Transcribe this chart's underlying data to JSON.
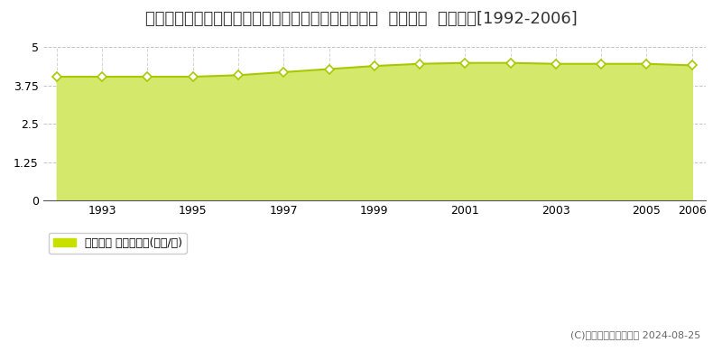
{
  "title": "岩手県柴波郡矢巾町大字赤林第１７地割字林崎８番６  地価公示  地価推移[1992-2006]",
  "years": [
    1992,
    1993,
    1994,
    1995,
    1996,
    1997,
    1998,
    1999,
    2000,
    2001,
    2002,
    2003,
    2004,
    2005,
    2006
  ],
  "values": [
    4.03,
    4.03,
    4.03,
    4.03,
    4.08,
    4.18,
    4.28,
    4.38,
    4.45,
    4.48,
    4.48,
    4.45,
    4.45,
    4.45,
    4.4
  ],
  "ylim": [
    0,
    5
  ],
  "yticks": [
    0,
    1.25,
    2.5,
    3.75,
    5
  ],
  "ytick_labels": [
    "0",
    "1.25",
    "2.5",
    "3.75",
    "5"
  ],
  "fill_color": "#d4e96b",
  "line_color": "#a8c800",
  "marker_facecolor": "#ffffff",
  "marker_edge_color": "#a8c800",
  "bg_color": "#ffffff",
  "grid_color": "#aaaaaa",
  "legend_label": "地価公示 平均坪単価(万円/坪)",
  "legend_color": "#c8e000",
  "copyright_text": "(C)土地価格ドットコム 2024-08-25",
  "title_fontsize": 13,
  "xtick_positions": [
    1993,
    1995,
    1997,
    1999,
    2001,
    2003,
    2005,
    2006
  ],
  "xtick_labels": [
    "1993",
    "1995",
    "1997",
    "1999",
    "2001",
    "2003",
    "2005",
    "2006"
  ]
}
